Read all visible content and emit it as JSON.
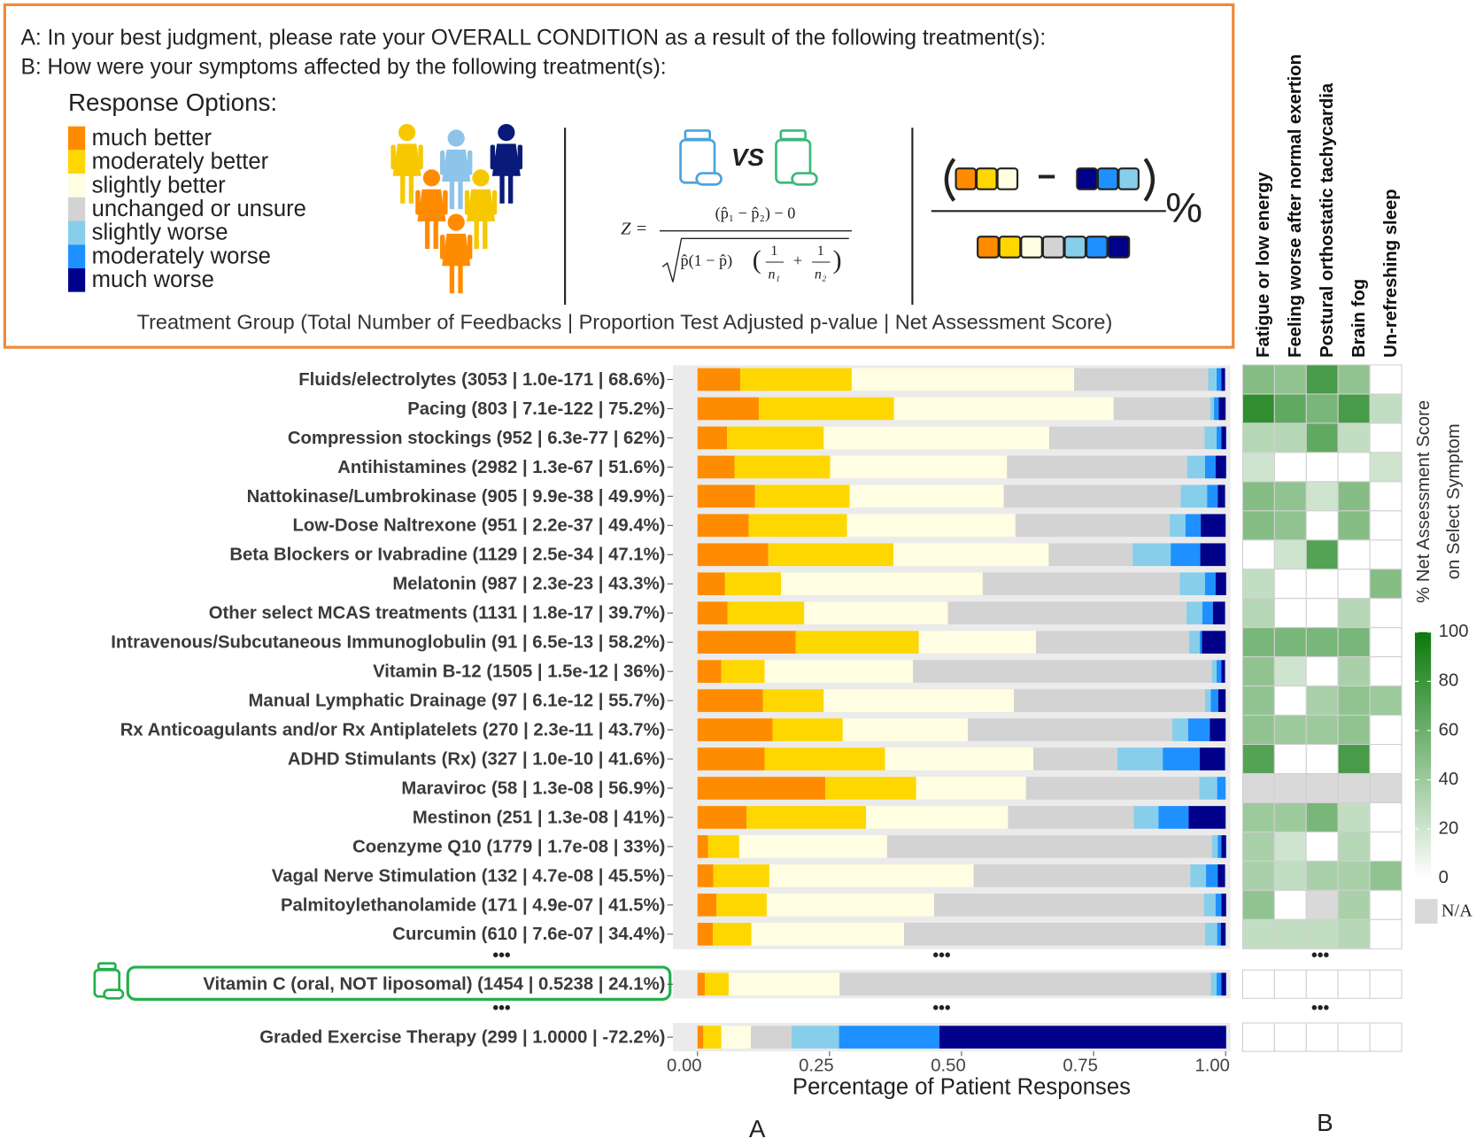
{
  "header": {
    "question_a": "A: In your best judgment, please rate your OVERALL CONDITION as a result of the following treatment(s):",
    "question_b": "B: How were your symptoms affected by the following treatment(s):",
    "options_title": "Response Options:",
    "vs": "VS",
    "formula": {
      "lhs": "Z =",
      "numerator": "(p̂₁ − p̂₂) − 0",
      "radicand": "p̂(1 − p̂)",
      "lparen": "(",
      "rparen": ")",
      "one": "1",
      "n1": "n₁",
      "plus": "+",
      "n2": "n₂"
    },
    "net_score": {
      "minus": "−",
      "percent": "%"
    },
    "caption": "Treatment Group (Total Number of Feedbacks | Proportion Test Adjusted p-value | Net Assessment Score)"
  },
  "ellipsis": "•••",
  "chart_data": [
    {
      "type": "bar",
      "orientation": "horizontal",
      "stacked": true,
      "panel_label": "A",
      "xlabel": "Percentage of Patient Responses",
      "xlim": [
        0,
        1
      ],
      "xticks": [
        {
          "value": 0,
          "label": "0.00"
        },
        {
          "value": 0.25,
          "label": "0.25"
        },
        {
          "value": 0.5,
          "label": "0.50"
        },
        {
          "value": 0.75,
          "label": "0.75"
        },
        {
          "value": 1,
          "label": "1.00"
        }
      ],
      "categories": [
        "Fluids/electrolytes (3053 | 1.0e-171 | 68.6%)",
        "Pacing (803 | 7.1e-122 | 75.2%)",
        "Compression stockings (952 | 6.3e-77 | 62%)",
        "Antihistamines (2982 | 1.3e-67 | 51.6%)",
        "Nattokinase/Lumbrokinase (905 | 9.9e-38 | 49.9%)",
        "Low-Dose Naltrexone (951 | 2.2e-37 | 49.4%)",
        "Beta Blockers or Ivabradine (1129 | 2.5e-34 | 47.1%)",
        "Melatonin (987 | 2.3e-23 | 43.3%)",
        "Other select MCAS treatments (1131 | 1.8e-17 | 39.7%)",
        "Intravenous/Subcutaneous Immunoglobulin (91 | 6.5e-13 | 58.2%)",
        "Vitamin B-12 (1505 | 1.5e-12 | 36%)",
        "Manual Lymphatic Drainage (97 | 6.1e-12 | 55.7%)",
        "Rx Anticoagulants and/or Rx Antiplatelets (270 | 2.3e-11 | 43.7%)",
        "ADHD Stimulants (Rx) (327 | 1.0e-10 | 41.6%)",
        "Maraviroc (58 | 1.3e-08 | 56.9%)",
        "Mestinon (251 | 1.3e-08 | 41%)",
        "Coenzyme Q10 (1779 | 1.7e-08 | 33%)",
        "Vagal Nerve Stimulation (132 | 4.7e-08 | 45.5%)",
        "Palmitoylethanolamide (171 | 4.9e-07 | 41.5%)",
        "Curcumin (610 | 7.6e-07 | 34.4%)",
        "Vitamin C (oral, NOT liposomal) (1454 | 0.5238 | 24.1%)",
        "Graded Exercise Therapy (299 | 1.0000 | -72.2%)"
      ],
      "series": [
        {
          "name": "much better",
          "color": "#ff8c00",
          "values": [
            0.081,
            0.116,
            0.056,
            0.07,
            0.109,
            0.097,
            0.134,
            0.052,
            0.057,
            0.186,
            0.045,
            0.124,
            0.142,
            0.127,
            0.242,
            0.093,
            0.02,
            0.03,
            0.036,
            0.029,
            0.014,
            0.011
          ]
        },
        {
          "name": "moderately better",
          "color": "#ffd700",
          "values": [
            0.211,
            0.256,
            0.183,
            0.181,
            0.179,
            0.186,
            0.237,
            0.106,
            0.145,
            0.233,
            0.082,
            0.115,
            0.133,
            0.228,
            0.172,
            0.226,
            0.059,
            0.106,
            0.095,
            0.073,
            0.045,
            0.034
          ]
        },
        {
          "name": "slightly better",
          "color": "#fffde2",
          "values": [
            0.421,
            0.416,
            0.427,
            0.335,
            0.292,
            0.319,
            0.294,
            0.382,
            0.272,
            0.222,
            0.281,
            0.36,
            0.237,
            0.281,
            0.208,
            0.269,
            0.28,
            0.387,
            0.317,
            0.289,
            0.21,
            0.056
          ]
        },
        {
          "name": "unchanged or unsure",
          "color": "#d3d3d3",
          "values": [
            0.254,
            0.183,
            0.294,
            0.341,
            0.335,
            0.292,
            0.159,
            0.373,
            0.452,
            0.29,
            0.566,
            0.362,
            0.387,
            0.159,
            0.328,
            0.238,
            0.615,
            0.41,
            0.511,
            0.57,
            0.703,
            0.077
          ]
        },
        {
          "name": "slightly worse",
          "color": "#87ceeb",
          "values": [
            0.016,
            0.007,
            0.023,
            0.034,
            0.05,
            0.03,
            0.072,
            0.048,
            0.03,
            0.02,
            0.009,
            0.011,
            0.03,
            0.086,
            0.034,
            0.047,
            0.011,
            0.03,
            0.022,
            0.023,
            0.011,
            0.09
          ]
        },
        {
          "name": "moderately worse",
          "color": "#1e90ff",
          "values": [
            0.009,
            0.009,
            0.009,
            0.02,
            0.02,
            0.029,
            0.056,
            0.02,
            0.02,
            0.004,
            0.009,
            0.014,
            0.041,
            0.07,
            0.016,
            0.057,
            0.007,
            0.022,
            0.011,
            0.007,
            0.009,
            0.19
          ]
        },
        {
          "name": "much worse",
          "color": "#00008b",
          "values": [
            0.007,
            0.013,
            0.009,
            0.02,
            0.014,
            0.047,
            0.048,
            0.02,
            0.023,
            0.045,
            0.007,
            0.014,
            0.03,
            0.048,
            0,
            0.07,
            0.009,
            0.014,
            0.009,
            0.009,
            0.009,
            0.543
          ]
        }
      ]
    },
    {
      "type": "heatmap",
      "panel_label": "B",
      "columns": [
        "Fatigue or low energy",
        "Feeling worse after normal exertion",
        "Postural orthostatic tachycardia",
        "Brain fog",
        "Un-refreshing sleep"
      ],
      "values": [
        [
          50,
          45,
          75,
          45,
          0
        ],
        [
          85,
          65,
          55,
          75,
          25
        ],
        [
          30,
          30,
          65,
          25,
          0
        ],
        [
          20,
          0,
          0,
          0,
          20
        ],
        [
          50,
          45,
          20,
          50,
          0
        ],
        [
          50,
          45,
          0,
          50,
          0
        ],
        [
          0,
          20,
          70,
          0,
          0
        ],
        [
          25,
          0,
          0,
          0,
          50
        ],
        [
          30,
          0,
          0,
          30,
          0
        ],
        [
          55,
          55,
          55,
          55,
          0
        ],
        [
          45,
          20,
          0,
          35,
          0
        ],
        [
          45,
          0,
          35,
          45,
          40
        ],
        [
          45,
          40,
          40,
          45,
          0
        ],
        [
          70,
          0,
          0,
          75,
          0
        ],
        [
          null,
          null,
          null,
          null,
          null
        ],
        [
          40,
          40,
          55,
          25,
          0
        ],
        [
          35,
          20,
          0,
          30,
          0
        ],
        [
          35,
          25,
          35,
          35,
          45
        ],
        [
          45,
          0,
          null,
          35,
          0
        ],
        [
          25,
          25,
          25,
          30,
          0
        ],
        [
          0,
          0,
          0,
          0,
          0
        ],
        [
          0,
          0,
          0,
          0,
          0
        ]
      ],
      "colors": [
        "#ffffff",
        "#0b7a0b"
      ],
      "na_color": "#d9d9d9",
      "clim": [
        0,
        100
      ],
      "cticks": [
        0,
        20,
        40,
        60,
        80,
        100
      ],
      "colorbar_title": [
        "% Net Assessment Score",
        "on Select Symptom"
      ],
      "na_label": "N/A"
    }
  ]
}
